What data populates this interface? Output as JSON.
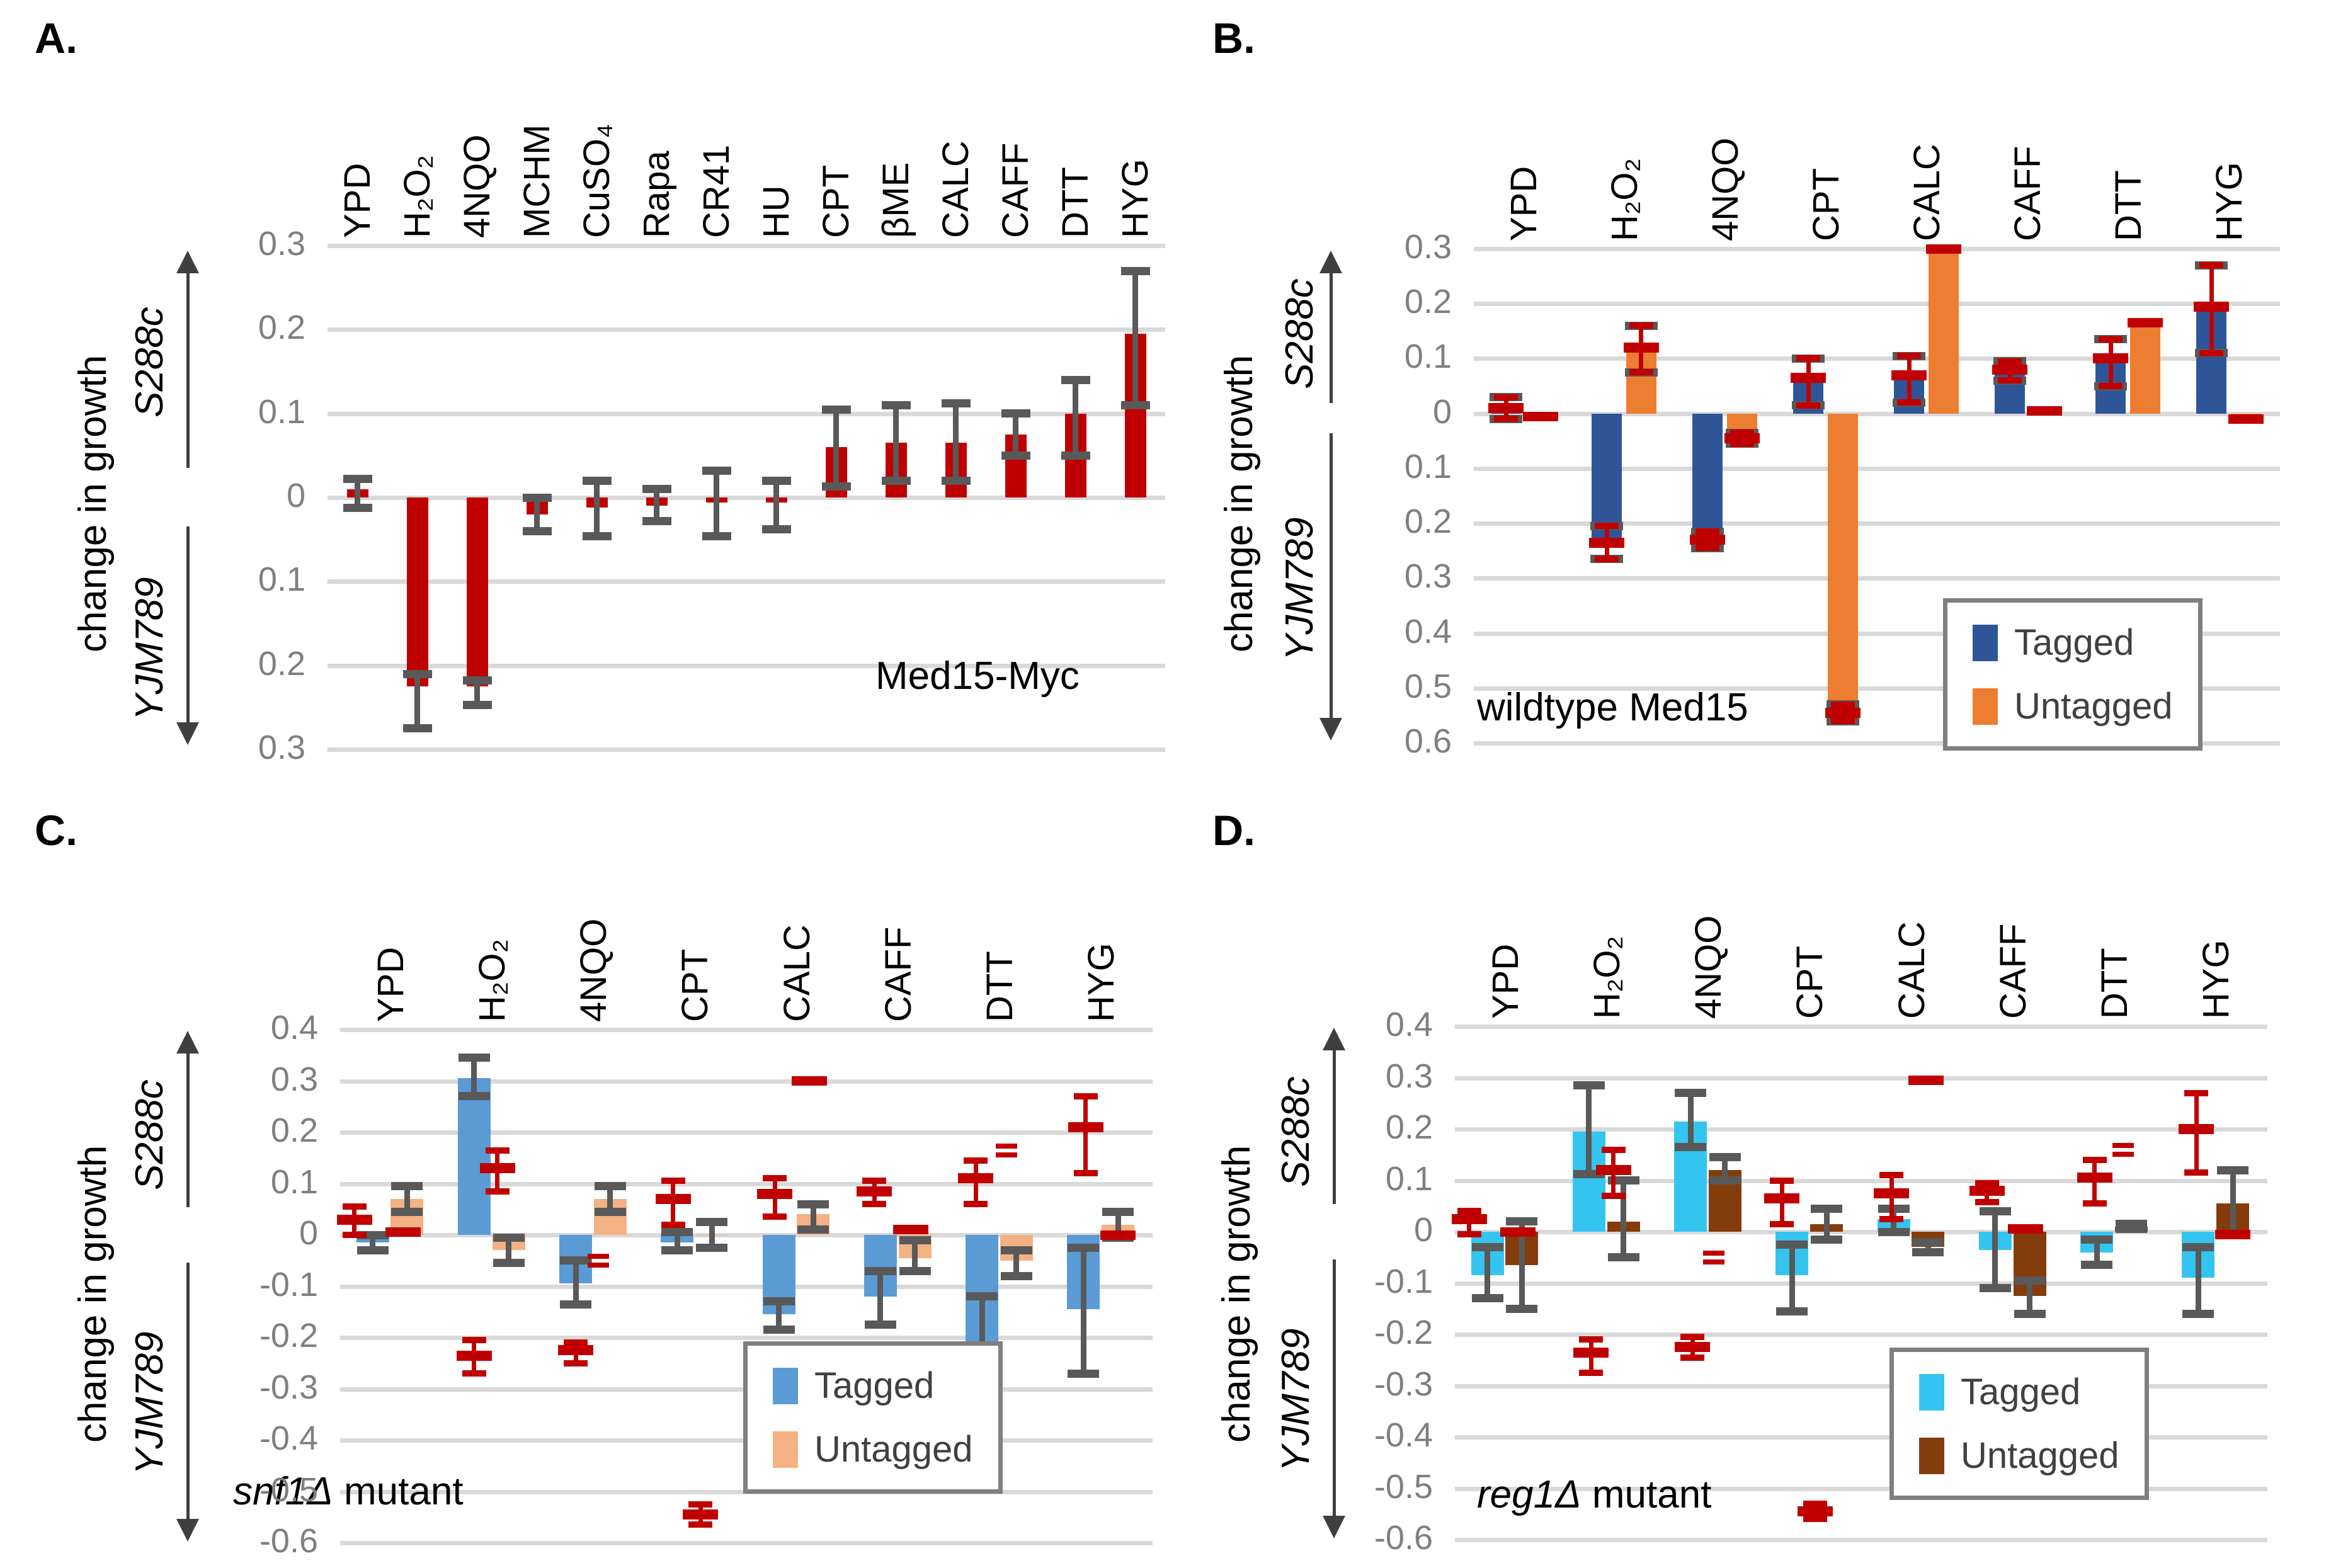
{
  "chart_data": [
    {
      "id": "A",
      "letter": "A.",
      "type": "bar",
      "annotation": "Med15-Myc",
      "ylabel": "change in growth",
      "strain_top": "S288c",
      "strain_bottom": "YJM789",
      "ylim": [
        -0.3,
        0.3
      ],
      "ticks": [
        {
          "label": "0.3",
          "v": 0.3
        },
        {
          "label": "0.2",
          "v": 0.2
        },
        {
          "label": "0.1",
          "v": 0.1
        },
        {
          "label": "0",
          "v": 0
        },
        {
          "label": "0.1",
          "v": -0.1
        },
        {
          "label": "0.2",
          "v": -0.2
        },
        {
          "label": "0.3",
          "v": -0.3
        }
      ],
      "categories": [
        "YPD",
        "H₂O₂",
        "4NQO",
        "MCHM",
        "CuSO₄",
        "Rapa",
        "CR41",
        "HU",
        "CPT",
        "βME",
        "CALC",
        "CAFF",
        "DTT",
        "HYG"
      ],
      "series": [
        {
          "name": "Med15-Myc",
          "color": "#C00000",
          "err_style": "gray",
          "err_color": "#595959",
          "values": [
            0.01,
            -0.225,
            -0.225,
            -0.02,
            -0.012,
            -0.01,
            -0.006,
            -0.006,
            0.06,
            0.065,
            0.065,
            0.075,
            0.1,
            0.195
          ],
          "err_lo": [
            -0.012,
            -0.275,
            -0.247,
            -0.04,
            -0.046,
            -0.028,
            -0.046,
            -0.038,
            0.013,
            0.02,
            0.02,
            0.05,
            0.05,
            0.11
          ],
          "err_hi": [
            0.022,
            -0.21,
            -0.218,
            0,
            0.02,
            0.01,
            0.032,
            0.02,
            0.105,
            0.11,
            0.112,
            0.1,
            0.14,
            0.27
          ]
        }
      ]
    },
    {
      "id": "B",
      "letter": "B.",
      "type": "bar",
      "annotation": "wildtype Med15",
      "ylabel": "change in growth",
      "strain_top": "S288c",
      "strain_bottom": "YJM789",
      "ylim": [
        -0.6,
        0.3
      ],
      "ticks": [
        {
          "label": "0.3",
          "v": 0.3
        },
        {
          "label": "0.2",
          "v": 0.2
        },
        {
          "label": "0.1",
          "v": 0.1
        },
        {
          "label": "0",
          "v": 0
        },
        {
          "label": "0.1",
          "v": -0.1
        },
        {
          "label": "0.2",
          "v": -0.2
        },
        {
          "label": "0.3",
          "v": -0.3
        },
        {
          "label": "0.4",
          "v": -0.4
        },
        {
          "label": "0.5",
          "v": -0.5
        },
        {
          "label": "0.6",
          "v": -0.6
        }
      ],
      "categories": [
        "YPD",
        "H₂O₂",
        "4NQO",
        "CPT",
        "CALC",
        "CAFF",
        "DTT",
        "HYG"
      ],
      "series": [
        {
          "name": "Tagged",
          "color": "#2E5597",
          "err_style": "redgray",
          "err_color": "#C00000",
          "values": [
            0.01,
            -0.235,
            -0.23,
            0.065,
            0.07,
            0.08,
            0.1,
            0.195
          ],
          "err_lo": [
            -0.01,
            -0.265,
            -0.245,
            0.015,
            0.02,
            0.06,
            0.05,
            0.11
          ],
          "err_hi": [
            0.03,
            -0.205,
            -0.215,
            0.1,
            0.105,
            0.095,
            0.135,
            0.27
          ]
        },
        {
          "name": "Untagged",
          "color": "#ED7D31",
          "err_style": "redgray",
          "err_color": "#C00000",
          "values": [
            -0.005,
            0.12,
            -0.045,
            -0.545,
            0.3,
            0.005,
            0.16,
            -0.01
          ],
          "err_lo": [
            -0.005,
            0.075,
            -0.055,
            -0.56,
            0.3,
            0.005,
            0.165,
            -0.01
          ],
          "err_hi": [
            -0.005,
            0.16,
            -0.035,
            -0.53,
            0.3,
            0.005,
            0.165,
            -0.01
          ]
        }
      ],
      "legend": {
        "items": [
          {
            "label": "Tagged",
            "color": "#2E5597"
          },
          {
            "label": "Untagged",
            "color": "#ED7D31"
          }
        ]
      }
    },
    {
      "id": "C",
      "letter": "C.",
      "type": "bar",
      "annotation_gene": "snf1Δ",
      "annotation_rest": " mutant",
      "ylabel": "change in growth",
      "strain_top": "S288c",
      "strain_bottom": "YJM789",
      "ylim": [
        -0.6,
        0.4
      ],
      "ticks": [
        {
          "label": "0.4",
          "v": 0.4
        },
        {
          "label": "0.3",
          "v": 0.3
        },
        {
          "label": "0.2",
          "v": 0.2
        },
        {
          "label": "0.1",
          "v": 0.1
        },
        {
          "label": "0",
          "v": 0
        },
        {
          "label": "-0.1",
          "v": -0.1
        },
        {
          "label": "-0.2",
          "v": -0.2
        },
        {
          "label": "-0.3",
          "v": -0.3
        },
        {
          "label": "-0.4",
          "v": -0.4
        },
        {
          "label": "-0.5",
          "v": -0.5
        },
        {
          "label": "-0.6",
          "v": -0.6
        }
      ],
      "categories": [
        "YPD",
        "H₂O₂",
        "4NQO",
        "CPT",
        "CALC",
        "CAFF",
        "DTT",
        "HYG"
      ],
      "series": [
        {
          "name": "Tagged",
          "color": "#5B9BD5",
          "err_style": "gray",
          "err_color": "#595959",
          "values": [
            -0.015,
            0.305,
            -0.095,
            -0.015,
            -0.155,
            -0.12,
            -0.21,
            -0.145
          ],
          "err_lo": [
            -0.03,
            0.27,
            -0.135,
            -0.03,
            -0.185,
            -0.175,
            -0.3,
            -0.27
          ],
          "err_hi": [
            0,
            0.345,
            -0.05,
            0.005,
            -0.13,
            -0.07,
            -0.12,
            -0.025
          ]
        },
        {
          "name": "Untagged",
          "color": "#F4B183",
          "err_style": "gray",
          "err_color": "#595959",
          "values": [
            0.07,
            -0.03,
            0.07,
            0,
            0.04,
            -0.045,
            -0.05,
            0.02
          ],
          "err_lo": [
            0.045,
            -0.055,
            0.045,
            -0.025,
            0.01,
            -0.07,
            -0.08,
            -0.005
          ],
          "err_hi": [
            0.095,
            -0.005,
            0.095,
            0.025,
            0.06,
            -0.01,
            -0.03,
            0.045
          ]
        }
      ],
      "ref_color": "#C00000",
      "refs": [
        [
          {
            "kind": "err",
            "v": 0.03,
            "lo": 0,
            "hi": 0.055,
            "x": 0.14
          },
          {
            "kind": "dash",
            "v": 0.005,
            "x": 0.62
          }
        ],
        [
          {
            "kind": "err",
            "v": 0.13,
            "lo": 0.085,
            "hi": 0.165,
            "x": 0.55
          },
          {
            "kind": "err",
            "v": -0.235,
            "lo": -0.27,
            "hi": -0.205,
            "x": 0.32
          }
        ],
        [
          {
            "kind": "dash2",
            "v": -0.05,
            "x": 0.54
          },
          {
            "kind": "err",
            "v": -0.225,
            "lo": -0.25,
            "hi": -0.21,
            "x": 0.32
          }
        ],
        [
          {
            "kind": "err",
            "v": 0.07,
            "lo": 0.02,
            "hi": 0.105,
            "x": 0.28
          },
          {
            "kind": "err",
            "v": -0.545,
            "lo": -0.565,
            "hi": -0.525,
            "x": 0.55
          }
        ],
        [
          {
            "kind": "dash",
            "v": 0.3,
            "x": 0.62
          },
          {
            "kind": "err",
            "v": 0.08,
            "lo": 0.035,
            "hi": 0.11,
            "x": 0.28
          }
        ],
        [
          {
            "kind": "err",
            "v": 0.085,
            "lo": 0.06,
            "hi": 0.105,
            "x": 0.26
          },
          {
            "kind": "dash",
            "v": 0.01,
            "x": 0.62
          }
        ],
        [
          {
            "kind": "err",
            "v": 0.11,
            "lo": 0.06,
            "hi": 0.145,
            "x": 0.26
          },
          {
            "kind": "dash2",
            "v": 0.165,
            "x": 0.56
          }
        ],
        [
          {
            "kind": "err",
            "v": 0.21,
            "lo": 0.12,
            "hi": 0.27,
            "x": 0.34
          },
          {
            "kind": "dash",
            "v": 0,
            "x": 0.66
          }
        ]
      ],
      "legend": {
        "items": [
          {
            "label": "Tagged",
            "color": "#5B9BD5"
          },
          {
            "label": "Untagged",
            "color": "#F4B183"
          }
        ]
      }
    },
    {
      "id": "D",
      "letter": "D.",
      "type": "bar",
      "annotation_gene": "reg1Δ",
      "annotation_rest": " mutant",
      "ylabel": "change in growth",
      "strain_top": "S288c",
      "strain_bottom": "YJM789",
      "ylim": [
        -0.6,
        0.4
      ],
      "ticks": [
        {
          "label": "0.4",
          "v": 0.4
        },
        {
          "label": "0.3",
          "v": 0.3
        },
        {
          "label": "0.2",
          "v": 0.2
        },
        {
          "label": "0.1",
          "v": 0.1
        },
        {
          "label": "0",
          "v": 0
        },
        {
          "label": "-0.1",
          "v": -0.1
        },
        {
          "label": "-0.2",
          "v": -0.2
        },
        {
          "label": "-0.3",
          "v": -0.3
        },
        {
          "label": "-0.4",
          "v": -0.4
        },
        {
          "label": "-0.5",
          "v": -0.5
        },
        {
          "label": "-0.6",
          "v": -0.6
        }
      ],
      "categories": [
        "YPD",
        "H₂O₂",
        "4NQO",
        "CPT",
        "CALC",
        "CAFF",
        "DTT",
        "HYG"
      ],
      "series": [
        {
          "name": "Tagged",
          "color": "#33C5F0",
          "err_style": "gray",
          "err_color": "#595959",
          "values": [
            -0.085,
            0.195,
            0.215,
            -0.085,
            0.025,
            -0.035,
            -0.04,
            -0.09
          ],
          "err_lo": [
            -0.13,
            0.112,
            0.165,
            -0.155,
            0,
            -0.11,
            -0.065,
            -0.16
          ],
          "err_hi": [
            -0.03,
            0.285,
            0.27,
            -0.025,
            0.045,
            0.04,
            -0.015,
            -0.03
          ]
        },
        {
          "name": "Untagged",
          "color": "#843C0C",
          "err_style": "gray",
          "err_color": "#595959",
          "values": [
            -0.065,
            0.02,
            0.12,
            0.015,
            -0.03,
            -0.125,
            0.01,
            0.055
          ],
          "err_lo": [
            -0.15,
            -0.05,
            0.1,
            -0.015,
            -0.04,
            -0.16,
            0.005,
            -0.005
          ],
          "err_hi": [
            0.02,
            0.1,
            0.145,
            0.045,
            -0.02,
            -0.095,
            0.015,
            0.12
          ]
        }
      ],
      "ref_color": "#C00000",
      "refs": [
        [
          {
            "kind": "err",
            "v": 0.025,
            "lo": -0.005,
            "hi": 0.04,
            "x": 0.14
          },
          {
            "kind": "dash",
            "v": 0,
            "x": 0.62
          }
        ],
        [
          {
            "kind": "err",
            "v": 0.12,
            "lo": 0.07,
            "hi": 0.16,
            "x": 0.56
          },
          {
            "kind": "err",
            "v": -0.235,
            "lo": -0.275,
            "hi": -0.21,
            "x": 0.34
          }
        ],
        [
          {
            "kind": "dash2",
            "v": -0.05,
            "x": 0.55
          },
          {
            "kind": "err",
            "v": -0.225,
            "lo": -0.245,
            "hi": -0.205,
            "x": 0.34
          }
        ],
        [
          {
            "kind": "err",
            "v": 0.065,
            "lo": 0.015,
            "hi": 0.1,
            "x": 0.22
          },
          {
            "kind": "err",
            "v": -0.545,
            "lo": -0.56,
            "hi": -0.53,
            "x": 0.55
          }
        ],
        [
          {
            "kind": "dash",
            "v": 0.295,
            "x": 0.64
          },
          {
            "kind": "err",
            "v": 0.075,
            "lo": 0.025,
            "hi": 0.11,
            "x": 0.3
          }
        ],
        [
          {
            "kind": "err",
            "v": 0.08,
            "lo": 0.058,
            "hi": 0.095,
            "x": 0.24
          },
          {
            "kind": "dash",
            "v": 0.005,
            "x": 0.62
          }
        ],
        [
          {
            "kind": "err",
            "v": 0.105,
            "lo": 0.055,
            "hi": 0.14,
            "x": 0.3
          },
          {
            "kind": "dash2",
            "v": 0.16,
            "x": 0.58
          }
        ],
        [
          {
            "kind": "err",
            "v": 0.2,
            "lo": 0.115,
            "hi": 0.27,
            "x": 0.3
          },
          {
            "kind": "dash",
            "v": -0.005,
            "x": 0.66
          }
        ]
      ],
      "legend": {
        "items": [
          {
            "label": "Tagged",
            "color": "#33C5F0"
          },
          {
            "label": "Untagged",
            "color": "#843C0C"
          }
        ]
      }
    }
  ]
}
